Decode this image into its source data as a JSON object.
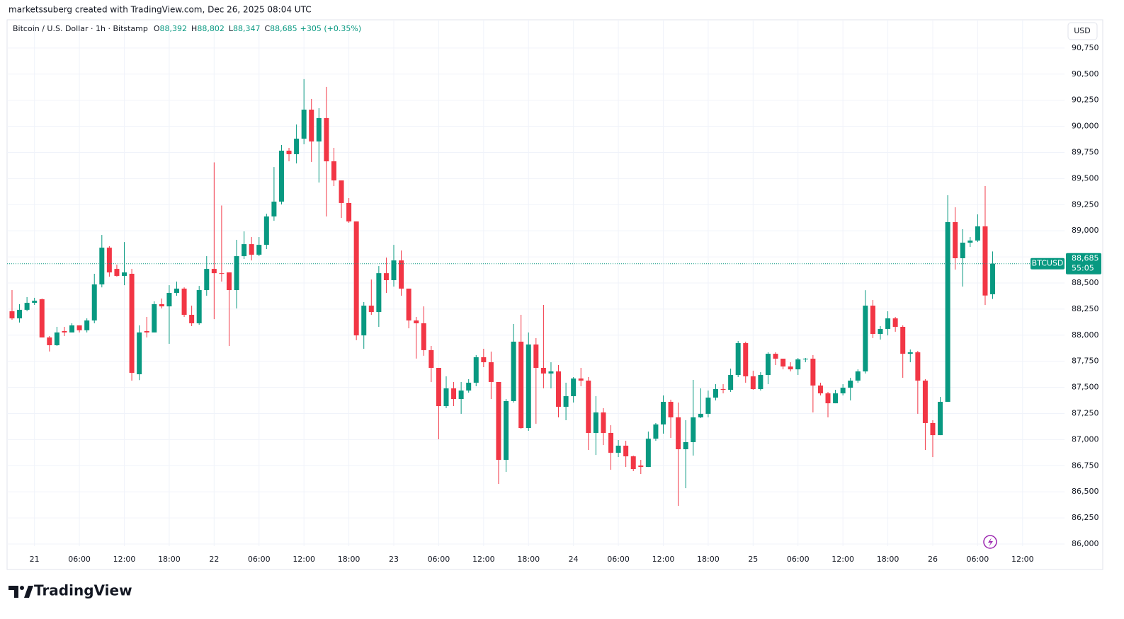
{
  "header": "marketssuberg created with TradingView.com, Dec 26, 2025 08:04 UTC",
  "chart_data": {
    "type": "candlestick",
    "title": "Bitcoin / U.S. Dollar · 1h · Bitstamp",
    "ohlc_legend": [
      {
        "key": "O",
        "value": "88,392"
      },
      {
        "key": "H",
        "value": "88,802"
      },
      {
        "key": "L",
        "value": "88,347"
      },
      {
        "key": "C",
        "value": "88,685"
      }
    ],
    "change": "+305 (+0.35%)",
    "currency": "USD",
    "up_color": "#089981",
    "down_color": "#f23645",
    "grid": true,
    "open": [
      88229,
      88161,
      88243,
      88310,
      88344,
      87978,
      87904,
      88040,
      88026,
      88094,
      88047,
      88141,
      88486,
      88838,
      88635,
      88568,
      88588,
      87626,
      88040,
      88026,
      88297,
      88276,
      88405,
      88446,
      88195,
      88114,
      88432,
      88635,
      88594,
      88601,
      88432,
      88757,
      88872,
      88770,
      88865,
      89137,
      89279,
      89767,
      89733,
      89882,
      90160,
      89855,
      90079,
      89665,
      89482,
      89266,
      89089,
      87998,
      88283,
      88222,
      88594,
      88527,
      88716,
      88446,
      88141,
      88114,
      87857,
      87687,
      87321,
      87491,
      87389,
      87470,
      87545,
      87789,
      87741,
      87552,
      86806,
      87369,
      87938,
      87111,
      87911,
      87687,
      87633,
      87653,
      87314,
      87416,
      87585,
      87565,
      87064,
      87260,
      87064,
      86874,
      86942,
      86840,
      86752,
      86738,
      87009,
      87145,
      87362,
      87213,
      86908,
      86976,
      87213,
      87247,
      87402,
      87484,
      87477,
      87619,
      87924,
      87606,
      87484,
      87619,
      87822,
      87775,
      87700,
      87673,
      87768,
      87775,
      87518,
      87443,
      87348,
      87443,
      87497,
      87565,
      87653,
      88283,
      88012,
      88060,
      88161,
      88080,
      87822,
      87836,
      87565,
      87159,
      87043,
      87362,
      89083,
      88737,
      88886,
      88906,
      89042,
      88392
    ],
    "high": [
      88432,
      88297,
      88365,
      88358,
      88351,
      87992,
      88080,
      88080,
      88114,
      88094,
      88161,
      88588,
      88960,
      88852,
      88675,
      88892,
      88635,
      88094,
      88175,
      88324,
      88351,
      88479,
      88513,
      88458,
      88283,
      88472,
      88757,
      89655,
      89242,
      88601,
      88913,
      88994,
      88940,
      88940,
      89163,
      89610,
      89821,
      89794,
      90018,
      90452,
      90262,
      90174,
      90377,
      89794,
      89482,
      89313,
      89089,
      88317,
      88533,
      88662,
      88743,
      88865,
      88811,
      88446,
      88175,
      88276,
      87897,
      87687,
      87606,
      87552,
      87552,
      87579,
      87809,
      87870,
      87843,
      87552,
      87389,
      88107,
      88195,
      88026,
      87972,
      88290,
      87741,
      87714,
      87545,
      87599,
      87687,
      87599,
      87416,
      87301,
      87138,
      86996,
      86989,
      86847,
      86806,
      87077,
      87159,
      87423,
      87382,
      87355,
      87186,
      87572,
      87491,
      87470,
      87531,
      87531,
      87680,
      87945,
      87938,
      87660,
      87646,
      87836,
      87836,
      87775,
      87741,
      87782,
      87782,
      87809,
      87545,
      87457,
      87477,
      87531,
      87592,
      87673,
      88431,
      88337,
      88087,
      88229,
      88175,
      88094,
      87863,
      87850,
      87579,
      87186,
      87409,
      89340,
      89225,
      89015,
      88940,
      89157,
      89428,
      88802
    ],
    "low": [
      88148,
      88121,
      88229,
      88290,
      87978,
      87844,
      87897,
      87992,
      88026,
      88026,
      88026,
      88114,
      88458,
      88560,
      88560,
      88479,
      87564,
      87570,
      87978,
      88026,
      88256,
      87917,
      88378,
      88175,
      88087,
      88100,
      88378,
      88154,
      88513,
      87897,
      88256,
      88730,
      88716,
      88757,
      88825,
      89096,
      89252,
      89665,
      89645,
      89828,
      89659,
      89462,
      89137,
      89428,
      89123,
      89076,
      87952,
      87870,
      88195,
      88080,
      88405,
      88465,
      88378,
      88066,
      87776,
      87803,
      87551,
      87003,
      87301,
      87321,
      87247,
      87450,
      87511,
      87694,
      87389,
      86576,
      86691,
      87355,
      87104,
      87084,
      87152,
      87491,
      87491,
      87213,
      87186,
      87355,
      87511,
      86901,
      86853,
      86948,
      86711,
      86833,
      86738,
      86698,
      86671,
      86738,
      86989,
      87057,
      87016,
      86366,
      86535,
      86847,
      87206,
      87213,
      87375,
      87443,
      87457,
      87599,
      87545,
      87477,
      87470,
      87531,
      87714,
      87673,
      87653,
      87619,
      87741,
      87260,
      87423,
      87213,
      87348,
      87423,
      87375,
      87545,
      87633,
      87972,
      87958,
      87998,
      88033,
      87592,
      87741,
      87247,
      86901,
      86833,
      87043,
      87362,
      88628,
      88465,
      88845,
      88892,
      88289,
      88347
    ],
    "close": [
      88161,
      88243,
      88310,
      88330,
      87978,
      87904,
      88026,
      88026,
      88094,
      88047,
      88141,
      88486,
      88838,
      88601,
      88568,
      88601,
      87639,
      88026,
      88026,
      88297,
      88276,
      88405,
      88446,
      88195,
      88114,
      88432,
      88635,
      88594,
      88588,
      88432,
      88757,
      88872,
      88770,
      88865,
      89137,
      89279,
      89767,
      89733,
      89882,
      90160,
      89855,
      90079,
      89665,
      89482,
      89266,
      89089,
      87998,
      88283,
      88222,
      88594,
      88527,
      88716,
      88446,
      88141,
      88114,
      87857,
      87687,
      87321,
      87491,
      87389,
      87470,
      87545,
      87789,
      87741,
      87552,
      86806,
      87369,
      87938,
      87111,
      87911,
      87687,
      87633,
      87653,
      87314,
      87416,
      87585,
      87565,
      87064,
      87260,
      87064,
      86874,
      86942,
      86840,
      86718,
      86738,
      87009,
      87145,
      87362,
      87213,
      86908,
      86976,
      87213,
      87247,
      87402,
      87484,
      87477,
      87619,
      87924,
      87606,
      87484,
      87619,
      87822,
      87775,
      87700,
      87673,
      87768,
      87775,
      87518,
      87443,
      87348,
      87443,
      87497,
      87565,
      87653,
      88283,
      88012,
      88060,
      88161,
      88080,
      87822,
      87836,
      87565,
      87159,
      87043,
      87362,
      89083,
      88737,
      88886,
      88906,
      89042,
      88380,
      88685
    ],
    "xlim": [
      -0.66,
      140.6
    ],
    "xticks": [
      {
        "value": 3,
        "label": "21"
      },
      {
        "value": 9,
        "label": "06:00"
      },
      {
        "value": 15,
        "label": "12:00"
      },
      {
        "value": 21,
        "label": "18:00"
      },
      {
        "value": 27,
        "label": "22"
      },
      {
        "value": 33,
        "label": "06:00"
      },
      {
        "value": 39,
        "label": "12:00"
      },
      {
        "value": 45,
        "label": "18:00"
      },
      {
        "value": 51,
        "label": "23"
      },
      {
        "value": 57,
        "label": "06:00"
      },
      {
        "value": 63,
        "label": "12:00"
      },
      {
        "value": 69,
        "label": "18:00"
      },
      {
        "value": 75,
        "label": "24"
      },
      {
        "value": 81,
        "label": "06:00"
      },
      {
        "value": 87,
        "label": "12:00"
      },
      {
        "value": 93,
        "label": "18:00"
      },
      {
        "value": 99,
        "label": "25"
      },
      {
        "value": 105,
        "label": "06:00"
      },
      {
        "value": 111,
        "label": "12:00"
      },
      {
        "value": 117,
        "label": "18:00"
      },
      {
        "value": 123,
        "label": "26"
      },
      {
        "value": 129,
        "label": "06:00"
      },
      {
        "value": 135,
        "label": "12:00"
      }
    ],
    "ylim": [
      85980,
      91020
    ],
    "yticks": [
      {
        "value": 86000,
        "label": "86,000"
      },
      {
        "value": 86250,
        "label": "86,250"
      },
      {
        "value": 86500,
        "label": "86,500"
      },
      {
        "value": 86750,
        "label": "86,750"
      },
      {
        "value": 87000,
        "label": "87,000"
      },
      {
        "value": 87250,
        "label": "87,250"
      },
      {
        "value": 87500,
        "label": "87,500"
      },
      {
        "value": 87750,
        "label": "87,750"
      },
      {
        "value": 88000,
        "label": "88,000"
      },
      {
        "value": 88250,
        "label": "88,250"
      },
      {
        "value": 88500,
        "label": "88,500"
      },
      {
        "value": 88750,
        "label": "88,750"
      },
      {
        "value": 89000,
        "label": "89,000"
      },
      {
        "value": 89250,
        "label": "89,250"
      },
      {
        "value": 89500,
        "label": "89,500"
      },
      {
        "value": 89750,
        "label": "89,750"
      },
      {
        "value": 90000,
        "label": "90,000"
      },
      {
        "value": 90250,
        "label": "90,250"
      },
      {
        "value": 90500,
        "label": "90,500"
      },
      {
        "value": 90750,
        "label": "90,750"
      }
    ],
    "last_price": {
      "symbol": "BTCUSD",
      "value": 88685,
      "value_label": "88,685",
      "countdown": "55:05"
    }
  },
  "footer": "TradingView"
}
